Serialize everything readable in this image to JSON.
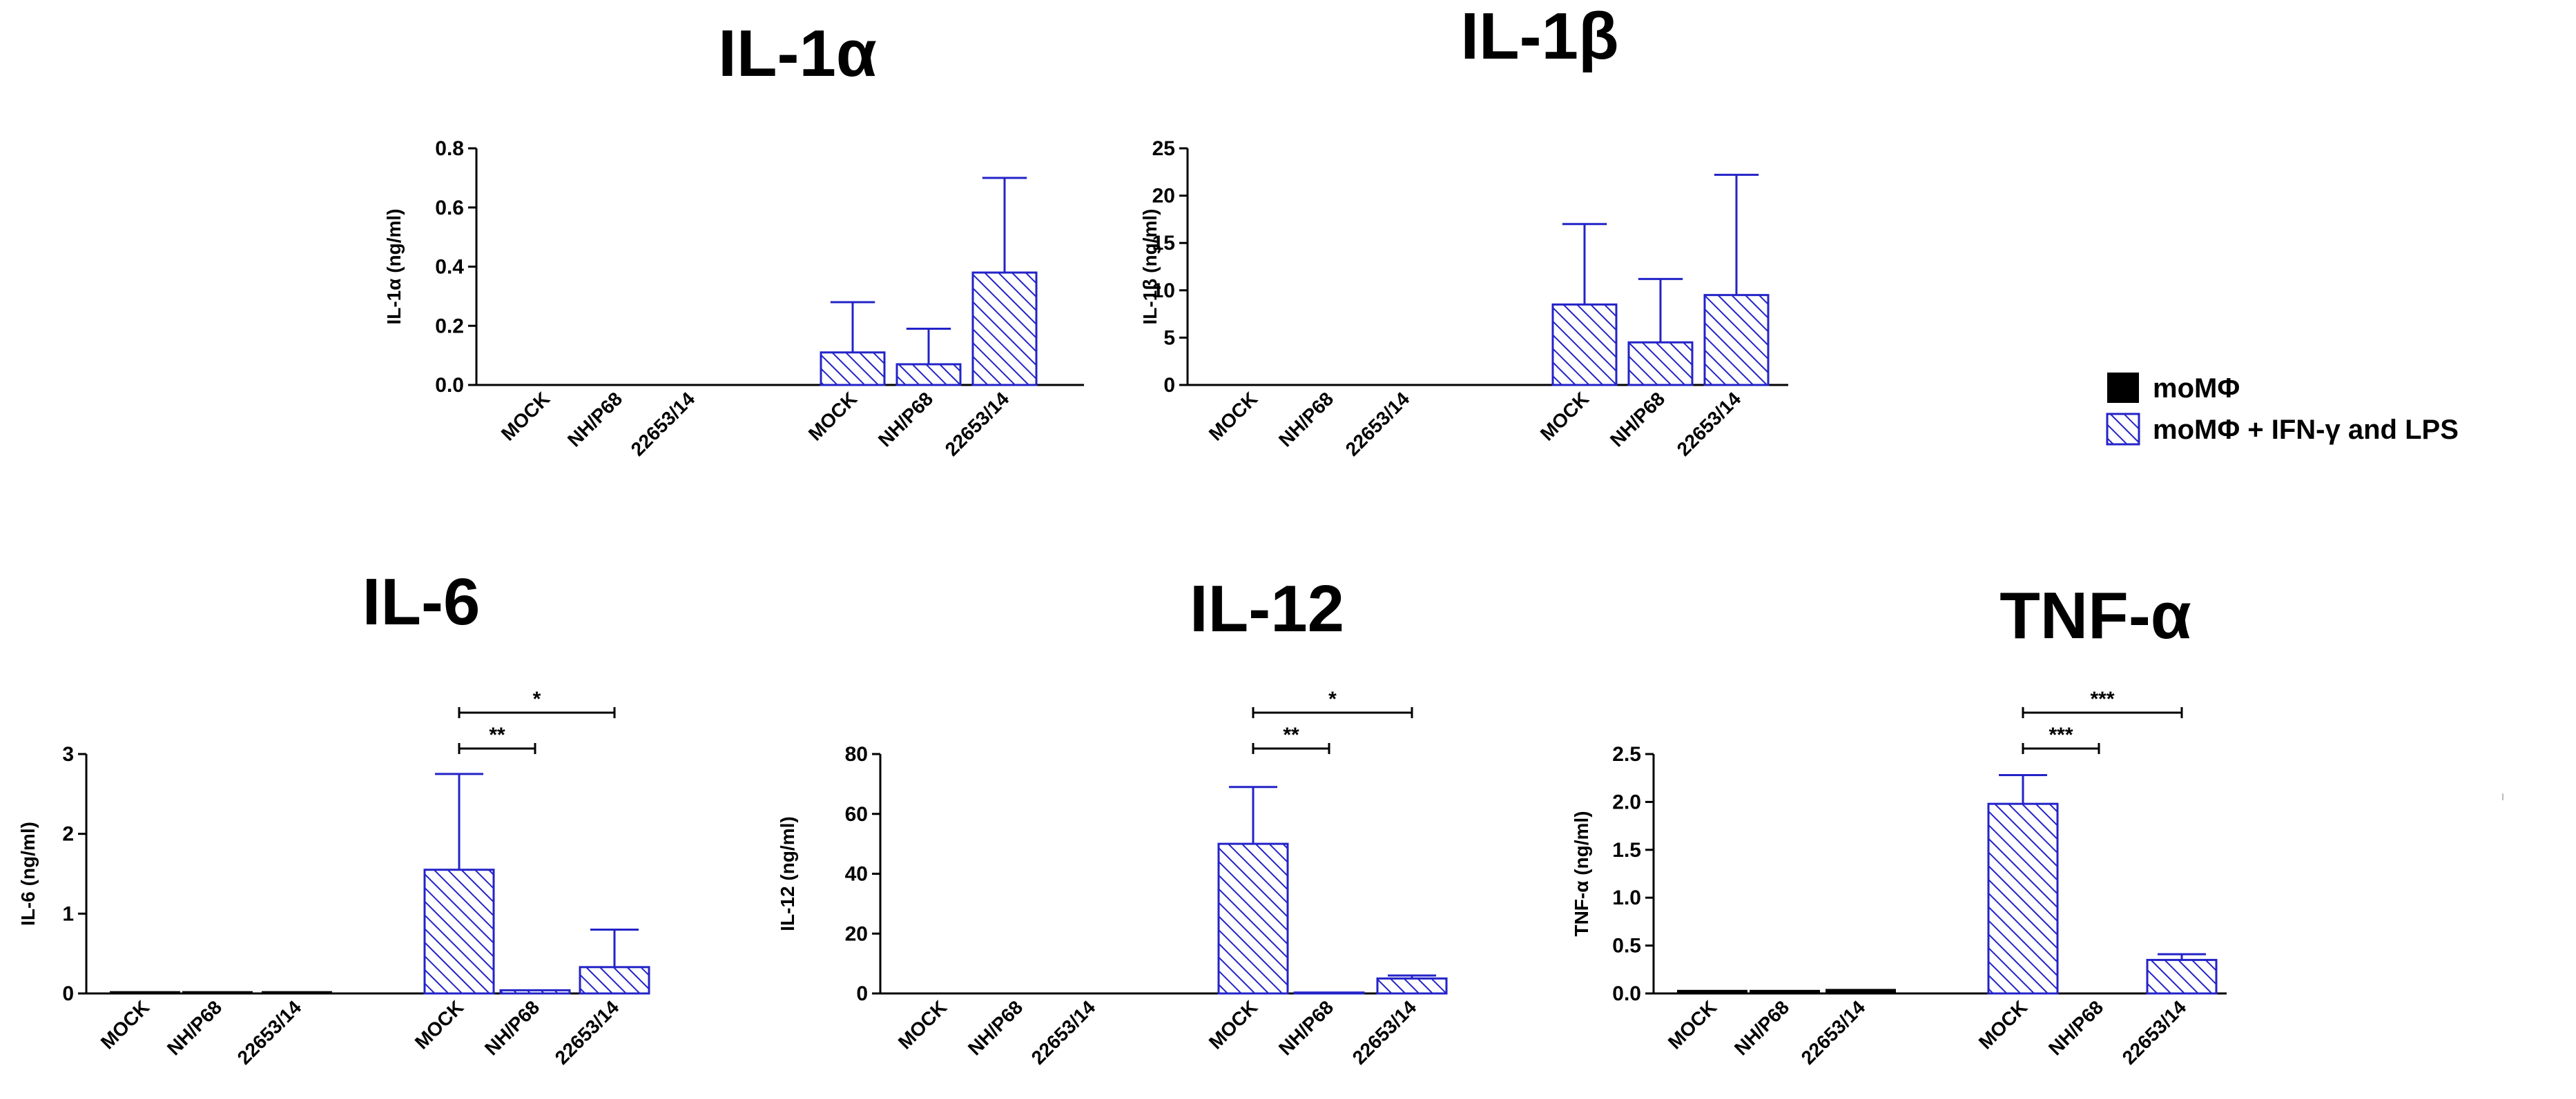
{
  "colors": {
    "hatch_border": "#2323c8",
    "hatch_line": "#2323c8",
    "solid": "#000000",
    "axis": "#000000"
  },
  "legend": {
    "items": [
      {
        "label": "moMΦ",
        "style": "solid"
      },
      {
        "label": "moMΦ + IFN-γ and LPS",
        "style": "hatch"
      }
    ]
  },
  "chart_data": [
    {
      "type": "bar",
      "title": "IL-1α",
      "ylabel": "IL-1α (ng/ml)",
      "ylim": [
        0,
        0.8
      ],
      "yticks": [
        0.0,
        0.2,
        0.4,
        0.6,
        0.8
      ],
      "ytick_labels": [
        "0.0",
        "0.2",
        "0.4",
        "0.6",
        "0.8"
      ],
      "groups": [
        {
          "name": "moMΦ",
          "style": "solid",
          "categories": [
            "MOCK",
            "NH/P68",
            "22653/14"
          ],
          "values": [
            0,
            0,
            0
          ],
          "errors": [
            0,
            0,
            0
          ]
        },
        {
          "name": "moMΦ + IFN-γ and LPS",
          "style": "hatch",
          "categories": [
            "MOCK",
            "NH/P68",
            "22653/14"
          ],
          "values": [
            0.11,
            0.07,
            0.38
          ],
          "errors": [
            0.17,
            0.12,
            0.32
          ]
        }
      ],
      "significance": []
    },
    {
      "type": "bar",
      "title": "IL-1β",
      "ylabel": "IL-1β (ng/ml)",
      "ylim": [
        0,
        25
      ],
      "yticks": [
        0,
        5,
        10,
        15,
        20,
        25
      ],
      "ytick_labels": [
        "0",
        "5",
        "10",
        "15",
        "20",
        "25"
      ],
      "groups": [
        {
          "name": "moMΦ",
          "style": "solid",
          "categories": [
            "MOCK",
            "NH/P68",
            "22653/14"
          ],
          "values": [
            0,
            0,
            0
          ],
          "errors": [
            0,
            0,
            0
          ]
        },
        {
          "name": "moMΦ + IFN-γ and LPS",
          "style": "hatch",
          "categories": [
            "MOCK",
            "NH/P68",
            "22653/14"
          ],
          "values": [
            8.5,
            4.5,
            9.5
          ],
          "errors": [
            8.5,
            6.7,
            12.7
          ]
        }
      ],
      "significance": []
    },
    {
      "type": "bar",
      "title": "IL-6",
      "ylabel": "IL-6 (ng/ml)",
      "ylim": [
        0,
        3
      ],
      "yticks": [
        0,
        1,
        2,
        3
      ],
      "ytick_labels": [
        "0",
        "1",
        "2",
        "3"
      ],
      "groups": [
        {
          "name": "moMΦ",
          "style": "solid",
          "categories": [
            "MOCK",
            "NH/P68",
            "22653/14"
          ],
          "values": [
            0.02,
            0.02,
            0.02
          ],
          "errors": [
            0,
            0,
            0
          ]
        },
        {
          "name": "moMΦ + IFN-γ and LPS",
          "style": "hatch",
          "categories": [
            "MOCK",
            "NH/P68",
            "22653/14"
          ],
          "values": [
            1.55,
            0.04,
            0.33
          ],
          "errors": [
            1.2,
            0,
            0.47
          ]
        }
      ],
      "significance": [
        {
          "from": 0,
          "to": 1,
          "label": "**",
          "level": 0
        },
        {
          "from": 0,
          "to": 2,
          "label": "*",
          "level": 1
        }
      ]
    },
    {
      "type": "bar",
      "title": "IL-12",
      "ylabel": "IL-12 (ng/ml)",
      "ylim": [
        0,
        80
      ],
      "yticks": [
        0,
        20,
        40,
        60,
        80
      ],
      "ytick_labels": [
        "0",
        "20",
        "40",
        "60",
        "80"
      ],
      "groups": [
        {
          "name": "moMΦ",
          "style": "solid",
          "categories": [
            "MOCK",
            "NH/P68",
            "22653/14"
          ],
          "values": [
            0,
            0,
            0
          ],
          "errors": [
            0,
            0,
            0
          ]
        },
        {
          "name": "moMΦ + IFN-γ and LPS",
          "style": "hatch",
          "categories": [
            "MOCK",
            "NH/P68",
            "22653/14"
          ],
          "values": [
            50,
            0.3,
            5
          ],
          "errors": [
            19,
            0,
            1
          ]
        }
      ],
      "significance": [
        {
          "from": 0,
          "to": 1,
          "label": "**",
          "level": 0
        },
        {
          "from": 0,
          "to": 2,
          "label": "*",
          "level": 1
        }
      ]
    },
    {
      "type": "bar",
      "title": "TNF-α",
      "ylabel": "TNF-α (ng/ml)",
      "ylim": [
        0,
        2.5
      ],
      "yticks": [
        0.0,
        0.5,
        1.0,
        1.5,
        2.0,
        2.5
      ],
      "ytick_labels": [
        "0.0",
        "0.5",
        "1.0",
        "1.5",
        "2.0",
        "2.5"
      ],
      "groups": [
        {
          "name": "moMΦ",
          "style": "solid",
          "categories": [
            "MOCK",
            "NH/P68",
            "22653/14"
          ],
          "values": [
            0.03,
            0.03,
            0.04
          ],
          "errors": [
            0,
            0,
            0
          ]
        },
        {
          "name": "moMΦ + IFN-γ and LPS",
          "style": "hatch",
          "categories": [
            "MOCK",
            "NH/P68",
            "22653/14"
          ],
          "values": [
            1.98,
            0.0,
            0.35
          ],
          "errors": [
            0.3,
            0,
            0.06
          ]
        }
      ],
      "significance": [
        {
          "from": 0,
          "to": 1,
          "label": "***",
          "level": 0
        },
        {
          "from": 0,
          "to": 2,
          "label": "***",
          "level": 1
        }
      ]
    }
  ]
}
